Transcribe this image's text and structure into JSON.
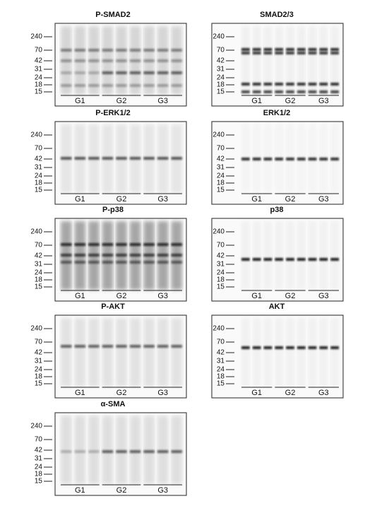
{
  "panels": [
    {
      "title": "P-SMAD2",
      "markers": [
        "240",
        "70",
        "42",
        "31",
        "24",
        "18",
        "15"
      ],
      "groups": [
        "G1",
        "G2",
        "G3"
      ]
    },
    {
      "title": "SMAD2/3",
      "markers": [
        "240",
        "70",
        "42",
        "31",
        "24",
        "18",
        "15"
      ],
      "groups": [
        "G1",
        "G2",
        "G3"
      ]
    },
    {
      "title": "P-ERK1/2",
      "markers": [
        "240",
        "70",
        "42",
        "31",
        "24",
        "18",
        "15"
      ],
      "groups": [
        "G1",
        "G2",
        "G3"
      ]
    },
    {
      "title": "ERK1/2",
      "markers": [
        "240",
        "70",
        "42",
        "31",
        "24",
        "18",
        "15"
      ],
      "groups": [
        "G1",
        "G2",
        "G3"
      ]
    },
    {
      "title": "P-p38",
      "markers": [
        "240",
        "70",
        "42",
        "31",
        "24",
        "18",
        "15"
      ],
      "groups": [
        "G1",
        "G2",
        "G3"
      ]
    },
    {
      "title": "p38",
      "markers": [
        "240",
        "70",
        "42",
        "31",
        "24",
        "18",
        "15"
      ],
      "groups": [
        "G1",
        "G2",
        "G3"
      ]
    },
    {
      "title": "P-AKT",
      "markers": [
        "240",
        "70",
        "42",
        "31",
        "24",
        "18",
        "15"
      ],
      "groups": [
        "G1",
        "G2",
        "G3"
      ]
    },
    {
      "title": "AKT",
      "markers": [
        "240",
        "70",
        "42",
        "31",
        "24",
        "18",
        "15"
      ],
      "groups": [
        "G1",
        "G2",
        "G3"
      ]
    },
    {
      "title": "α-SMA",
      "markers": [
        "240",
        "70",
        "42",
        "31",
        "24",
        "18",
        "15"
      ],
      "groups": [
        "G1",
        "G2",
        "G3"
      ]
    }
  ]
}
